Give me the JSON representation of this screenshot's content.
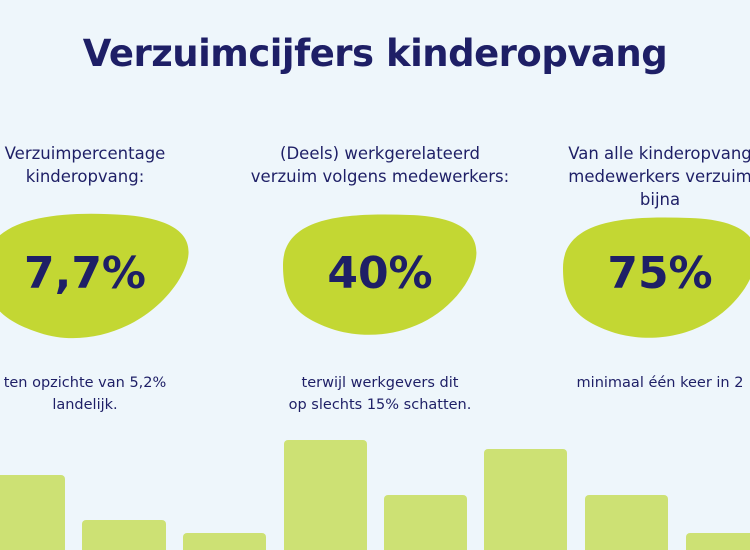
{
  "header": {
    "title": "Verzuimcijfers kinderopvang"
  },
  "columns": [
    {
      "heading": [
        "Verzuimpercentage",
        "kinderopvang:"
      ],
      "stat": "7,7%",
      "note": [
        "ten opzichte van 5,2%",
        "landelijk."
      ]
    },
    {
      "heading": [
        "(Deels) werkgerelateerd",
        "verzuim volgens medewerkers:"
      ],
      "stat": "40%",
      "note": [
        "terwijl werkgevers dit",
        "op slechts  15% schatten."
      ]
    },
    {
      "heading": [
        "Van alle kinderopvang",
        "medewerkers verzuim",
        "bijna"
      ],
      "stat": "75%",
      "note": [
        "minimaal één keer in 2"
      ]
    }
  ]
}
